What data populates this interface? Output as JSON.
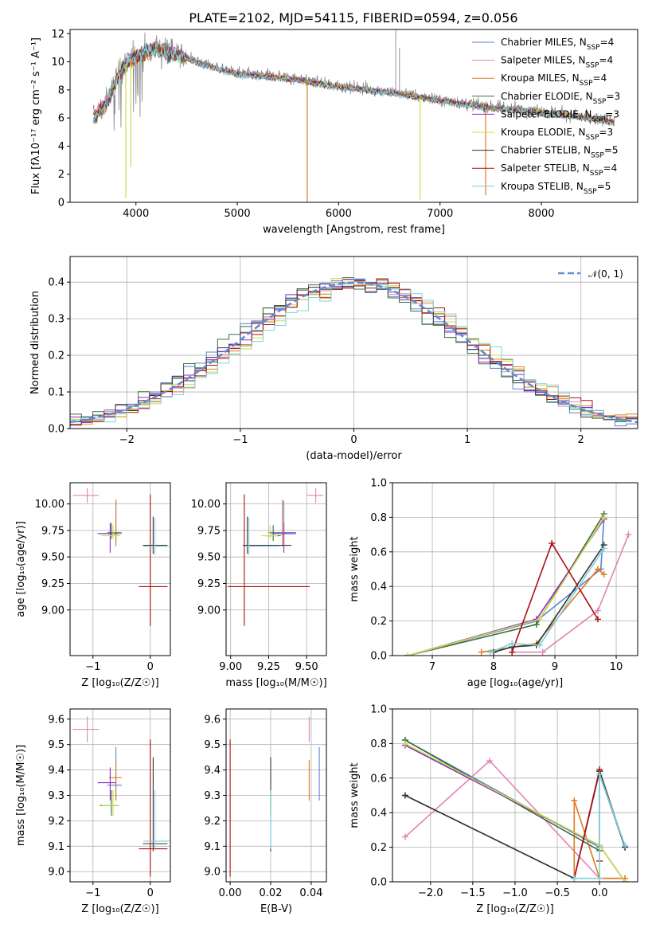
{
  "series": [
    {
      "name": "Chabrier MILES",
      "nssp": "4",
      "color": "#5b84d0"
    },
    {
      "name": "Salpeter MILES",
      "nssp": "4",
      "color": "#e184b4"
    },
    {
      "name": "Kroupa MILES",
      "nssp": "4",
      "color": "#dc7b20"
    },
    {
      "name": "Chabrier ELODIE",
      "nssp": "3",
      "color": "#3a6f3a"
    },
    {
      "name": "Salpeter ELODIE",
      "nssp": "3",
      "color": "#8c2bbe"
    },
    {
      "name": "Kroupa ELODIE",
      "nssp": "3",
      "color": "#ccdc4a"
    },
    {
      "name": "Chabrier STELIB",
      "nssp": "5",
      "color": "#333333"
    },
    {
      "name": "Salpeter STELIB",
      "nssp": "4",
      "color": "#aa1111"
    },
    {
      "name": "Kroupa STELIB",
      "nssp": "5",
      "color": "#7fd2dc"
    }
  ],
  "chart_data": [
    {
      "id": "spectrum",
      "type": "line",
      "title": "PLATE=2102, MJD=54115, FIBERID=0594, z=0.056",
      "xlabel": "wavelength [Angstrom, rest frame]",
      "ylabel": "Flux [fλ10⁻¹⁷ erg cm⁻² s⁻¹ A⁻¹]",
      "xlim": [
        3350,
        8950
      ],
      "ylim": [
        0,
        12.3
      ],
      "xticks": [
        4000,
        5000,
        6000,
        7000,
        8000
      ],
      "yticks": [
        0,
        2,
        4,
        6,
        8,
        10,
        12
      ],
      "data_color": "#888888",
      "continuum": [
        [
          3580,
          6.0
        ],
        [
          3700,
          7.0
        ],
        [
          3850,
          9.5
        ],
        [
          4000,
          10.5
        ],
        [
          4200,
          11.0
        ],
        [
          4400,
          10.6
        ],
        [
          4700,
          9.8
        ],
        [
          5000,
          9.2
        ],
        [
          5500,
          8.9
        ],
        [
          6000,
          8.3
        ],
        [
          6500,
          7.9
        ],
        [
          7000,
          7.3
        ],
        [
          7500,
          6.8
        ],
        [
          8000,
          6.5
        ],
        [
          8500,
          6.0
        ],
        [
          8700,
          5.8
        ]
      ],
      "spikes": [
        [
          3900,
          0.3,
          "#ccdc4a"
        ],
        [
          3950,
          2.5,
          "#ccdc4a"
        ],
        [
          5690,
          0,
          "#dc7b20"
        ],
        [
          6805,
          0.2,
          "#ccdc4a"
        ],
        [
          7450,
          0.5,
          "#dc7b20"
        ]
      ],
      "emission": [
        [
          6563,
          12.3
        ],
        [
          6600,
          11.0
        ]
      ],
      "legend": "upper right"
    },
    {
      "id": "residuals",
      "type": "line",
      "xlabel": "(data-model)/error",
      "ylabel": "Normed distribution",
      "xlim": [
        -2.5,
        2.5
      ],
      "ylim": [
        0,
        0.47
      ],
      "xticks": [
        -2,
        -1,
        0,
        1,
        2
      ],
      "yticks": [
        0.0,
        0.1,
        0.2,
        0.3,
        0.4
      ],
      "normal_label": "𝒩(0, 1)",
      "normal_color": "#5b8fd0",
      "grid": true,
      "legend": "upper right"
    },
    {
      "id": "age-vs-Z",
      "type": "scatter",
      "xlabel": "Z [log₁₀(Z/Z☉)]",
      "ylabel": "age  [log₁₀(age/yr)]",
      "xlim": [
        -1.4,
        0.35
      ],
      "ylim": [
        8.57,
        10.2
      ],
      "xticks": [
        -1,
        0
      ],
      "yticks": [
        9.0,
        9.25,
        9.5,
        9.75,
        10.0
      ],
      "grid": true,
      "points": [
        {
          "s": 0,
          "x": -0.6,
          "y": 9.73,
          "xe": [
            0.15,
            0.1
          ],
          "ye": [
            0.1,
            0.3
          ]
        },
        {
          "s": 1,
          "x": -1.1,
          "y": 10.08,
          "xe": [
            0.25,
            0.2
          ],
          "ye": [
            0.07,
            0.07
          ]
        },
        {
          "s": 2,
          "x": -0.6,
          "y": 9.72,
          "xe": [
            0.12,
            0.1
          ],
          "ye": [
            0.12,
            0.32
          ]
        },
        {
          "s": 3,
          "x": -0.68,
          "y": 9.72,
          "xe": [
            0.2,
            0.12
          ],
          "ye": [
            0.05,
            0.1
          ]
        },
        {
          "s": 4,
          "x": -0.7,
          "y": 9.72,
          "xe": [
            0.22,
            0.1
          ],
          "ye": [
            0.18,
            0.1
          ]
        },
        {
          "s": 5,
          "x": -0.65,
          "y": 9.7,
          "xe": [
            0.2,
            0.12
          ],
          "ye": [
            0.03,
            0.1
          ]
        },
        {
          "s": 6,
          "x": 0.05,
          "y": 9.61,
          "xe": [
            0.18,
            0.25
          ],
          "ye": [
            0.08,
            0.27
          ]
        },
        {
          "s": 7,
          "x": 0.0,
          "y": 9.22,
          "xe": [
            0.2,
            0.3
          ],
          "ye": [
            0.37,
            0.87
          ]
        },
        {
          "s": 8,
          "x": 0.08,
          "y": 9.6,
          "xe": [
            0.2,
            0.25
          ],
          "ye": [
            0.08,
            0.27
          ]
        }
      ]
    },
    {
      "id": "age-vs-mass",
      "type": "scatter",
      "xlabel": "mass [log₁₀(M/M☉)]",
      "ylabel": "",
      "xlim": [
        8.97,
        9.63
      ],
      "ylim": [
        8.57,
        10.2
      ],
      "xticks": [
        9.0,
        9.25,
        9.5
      ],
      "yticks": [
        9.0,
        9.25,
        9.5,
        9.75,
        10.0
      ],
      "grid": true,
      "points": [
        {
          "s": 0,
          "x": 9.35,
          "y": 9.73,
          "xe": [
            0.1,
            0.08
          ],
          "ye": [
            0.1,
            0.3
          ]
        },
        {
          "s": 1,
          "x": 9.56,
          "y": 10.08,
          "xe": [
            0.06,
            0.05
          ],
          "ye": [
            0.07,
            0.07
          ]
        },
        {
          "s": 2,
          "x": 9.34,
          "y": 9.72,
          "xe": [
            0.08,
            0.05
          ],
          "ye": [
            0.12,
            0.32
          ]
        },
        {
          "s": 3,
          "x": 9.28,
          "y": 9.7,
          "xe": [
            0.05,
            0.05
          ],
          "ye": [
            0.05,
            0.1
          ]
        },
        {
          "s": 4,
          "x": 9.35,
          "y": 9.72,
          "xe": [
            0.07,
            0.08
          ],
          "ye": [
            0.18,
            0.1
          ]
        },
        {
          "s": 5,
          "x": 9.26,
          "y": 9.7,
          "xe": [
            0.06,
            0.05
          ],
          "ye": [
            0.03,
            0.1
          ]
        },
        {
          "s": 6,
          "x": 9.11,
          "y": 9.61,
          "xe": [
            0.03,
            0.29
          ],
          "ye": [
            0.08,
            0.27
          ]
        },
        {
          "s": 7,
          "x": 9.09,
          "y": 9.22,
          "xe": [
            0.11,
            0.43
          ],
          "ye": [
            0.37,
            0.87
          ]
        },
        {
          "s": 8,
          "x": 9.12,
          "y": 9.6,
          "xe": [
            0.03,
            0.2
          ],
          "ye": [
            0.08,
            0.27
          ]
        }
      ]
    },
    {
      "id": "weight-vs-age",
      "type": "line",
      "xlabel": "age  [log₁₀(age/yr)]",
      "ylabel": "mass weight",
      "xlim": [
        6.35,
        10.35
      ],
      "ylim": [
        0,
        1.0
      ],
      "xticks": [
        7,
        8,
        9,
        10
      ],
      "yticks": [
        0.0,
        0.2,
        0.4,
        0.6,
        0.8,
        1.0
      ],
      "grid": true,
      "lines": [
        {
          "s": 0,
          "x": [
            6.6,
            8.7,
            9.75,
            9.8
          ],
          "y": [
            0.0,
            0.2,
            0.5,
            0.8
          ]
        },
        {
          "s": 1,
          "x": [
            8.3,
            8.8,
            9.7,
            10.2
          ],
          "y": [
            0.02,
            0.02,
            0.26,
            0.7
          ]
        },
        {
          "s": 2,
          "x": [
            7.8,
            8.7,
            9.7,
            9.8
          ],
          "y": [
            0.02,
            0.07,
            0.5,
            0.47
          ]
        },
        {
          "s": 3,
          "x": [
            6.6,
            8.7,
            9.8
          ],
          "y": [
            0.0,
            0.18,
            0.82
          ]
        },
        {
          "s": 4,
          "x": [
            6.6,
            8.7,
            9.8
          ],
          "y": [
            0.0,
            0.21,
            0.79
          ]
        },
        {
          "s": 5,
          "x": [
            6.6,
            8.75,
            9.8
          ],
          "y": [
            0.0,
            0.21,
            0.8
          ]
        },
        {
          "s": 6,
          "x": [
            8.0,
            8.3,
            8.7,
            9.8
          ],
          "y": [
            0.02,
            0.05,
            0.06,
            0.64
          ]
        },
        {
          "s": 7,
          "x": [
            8.3,
            8.95,
            9.7
          ],
          "y": [
            0.02,
            0.65,
            0.21
          ]
        },
        {
          "s": 8,
          "x": [
            7.95,
            8.3,
            8.75,
            9.8
          ],
          "y": [
            0.02,
            0.07,
            0.06,
            0.62
          ]
        }
      ]
    },
    {
      "id": "mass-vs-Z",
      "type": "scatter",
      "xlabel": "Z [log₁₀(Z/Z☉)]",
      "ylabel": "mass [log₁₀(M/M☉)]",
      "xlim": [
        -1.4,
        0.35
      ],
      "ylim": [
        8.96,
        9.64
      ],
      "xticks": [
        -1,
        0
      ],
      "yticks": [
        9.0,
        9.1,
        9.2,
        9.3,
        9.4,
        9.5,
        9.6
      ],
      "grid": true,
      "points": [
        {
          "s": 0,
          "x": -0.6,
          "y": 9.34,
          "xe": [
            0.15,
            0.1
          ],
          "ye": [
            0.06,
            0.15
          ]
        },
        {
          "s": 1,
          "x": -1.1,
          "y": 9.56,
          "xe": [
            0.25,
            0.2
          ],
          "ye": [
            0.05,
            0.05
          ]
        },
        {
          "s": 2,
          "x": -0.6,
          "y": 9.37,
          "xe": [
            0.12,
            0.1
          ],
          "ye": [
            0.09,
            0.07
          ]
        },
        {
          "s": 3,
          "x": -0.68,
          "y": 9.26,
          "xe": [
            0.2,
            0.12
          ],
          "ye": [
            0.04,
            0.06
          ]
        },
        {
          "s": 4,
          "x": -0.7,
          "y": 9.35,
          "xe": [
            0.22,
            0.1
          ],
          "ye": [
            0.07,
            0.06
          ]
        },
        {
          "s": 5,
          "x": -0.65,
          "y": 9.26,
          "xe": [
            0.2,
            0.12
          ],
          "ye": [
            0.04,
            0.06
          ]
        },
        {
          "s": 6,
          "x": 0.05,
          "y": 9.11,
          "xe": [
            0.18,
            0.25
          ],
          "ye": [
            0.03,
            0.34
          ]
        },
        {
          "s": 7,
          "x": 0.0,
          "y": 9.09,
          "xe": [
            0.2,
            0.3
          ],
          "ye": [
            0.11,
            0.43
          ]
        },
        {
          "s": 8,
          "x": 0.08,
          "y": 9.12,
          "xe": [
            0.2,
            0.25
          ],
          "ye": [
            0.03,
            0.2
          ]
        }
      ]
    },
    {
      "id": "mass-vs-EBV",
      "type": "scatter",
      "xlabel": "E(B-V)",
      "ylabel": "",
      "xlim": [
        -0.002,
        0.0475
      ],
      "ylim": [
        8.96,
        9.64
      ],
      "xticks": [
        0.0,
        0.02,
        0.04
      ],
      "yticks": [
        9.0,
        9.1,
        9.2,
        9.3,
        9.4,
        9.5,
        9.6
      ],
      "grid": true,
      "points": [
        {
          "s": 0,
          "x": 0.044,
          "y": 9.34,
          "xe": [
            0,
            0
          ],
          "ye": [
            0.06,
            0.15
          ]
        },
        {
          "s": 1,
          "x": 0.039,
          "y": 9.56,
          "xe": [
            0,
            0
          ],
          "ye": [
            0.05,
            0.05
          ]
        },
        {
          "s": 2,
          "x": 0.039,
          "y": 9.37,
          "xe": [
            0,
            0
          ],
          "ye": [
            0.09,
            0.07
          ]
        },
        {
          "s": 3,
          "x": 0.02,
          "y": 9.26,
          "xe": [
            0,
            0
          ],
          "ye": [
            0.04,
            0.06
          ]
        },
        {
          "s": 5,
          "x": 0.02,
          "y": 9.26,
          "xe": [
            0,
            0
          ],
          "ye": [
            0.04,
            0.06
          ]
        },
        {
          "s": 6,
          "x": 0.02,
          "y": 9.11,
          "xe": [
            0,
            0
          ],
          "ye": [
            0.03,
            0.34
          ]
        },
        {
          "s": 7,
          "x": 0.0,
          "y": 9.09,
          "xe": [
            0,
            0
          ],
          "ye": [
            0.11,
            0.43
          ]
        },
        {
          "s": 8,
          "x": 0.02,
          "y": 9.12,
          "xe": [
            0,
            0
          ],
          "ye": [
            0.03,
            0.2
          ]
        }
      ]
    },
    {
      "id": "weight-vs-Z",
      "type": "line",
      "xlabel": "Z [log₁₀(Z/Z☉)]",
      "ylabel": "mass weight",
      "xlim": [
        -2.45,
        0.45
      ],
      "ylim": [
        0,
        1.0
      ],
      "xticks": [
        -2.0,
        -1.5,
        -1.0,
        -0.5,
        0.0
      ],
      "yticks": [
        0.0,
        0.2,
        0.4,
        0.6,
        0.8,
        1.0
      ],
      "grid": true,
      "lines": [
        {
          "s": 0,
          "x": [
            -2.3,
            0.0,
            0.0,
            0.3
          ],
          "y": [
            0.82,
            0.2,
            0.62,
            0.2
          ]
        },
        {
          "s": 1,
          "x": [
            -2.3,
            -1.3,
            0.0,
            0.3
          ],
          "y": [
            0.26,
            0.7,
            0.02,
            0.02
          ]
        },
        {
          "s": 2,
          "x": [
            -2.3,
            -0.3,
            -0.3,
            0.0,
            0.3
          ],
          "y": [
            0.5,
            0.02,
            0.47,
            0.02,
            0.02
          ]
        },
        {
          "s": 3,
          "x": [
            -2.3,
            0.0,
            0.0,
            0.3
          ],
          "y": [
            0.82,
            0.18,
            0.64,
            0.2
          ]
        },
        {
          "s": 4,
          "x": [
            -2.3,
            0.0,
            0.3
          ],
          "y": [
            0.79,
            0.21,
            0.0
          ]
        },
        {
          "s": 5,
          "x": [
            -2.3,
            0.0,
            0.3
          ],
          "y": [
            0.8,
            0.21,
            0.0
          ]
        },
        {
          "s": 6,
          "x": [
            -2.3,
            -0.3,
            0.0,
            0.3
          ],
          "y": [
            0.5,
            0.02,
            0.64,
            0.2
          ]
        },
        {
          "s": 7,
          "x": [
            -0.3,
            0.0,
            0.0
          ],
          "y": [
            0.02,
            0.65,
            0.12
          ]
        },
        {
          "s": 8,
          "x": [
            -0.3,
            0.0,
            0.0,
            0.3
          ],
          "y": [
            0.02,
            0.02,
            0.62,
            0.21
          ]
        }
      ]
    }
  ]
}
